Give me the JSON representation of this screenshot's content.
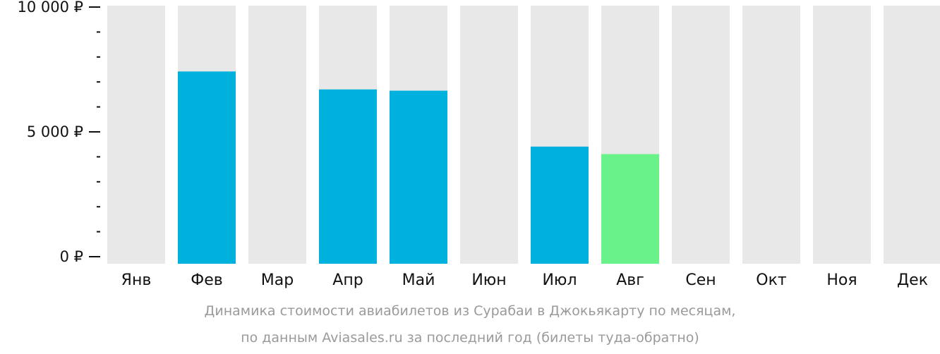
{
  "chart_data": {
    "type": "bar",
    "categories": [
      "Янв",
      "Фев",
      "Мар",
      "Апр",
      "Май",
      "Июн",
      "Июл",
      "Авг",
      "Сен",
      "Окт",
      "Ноя",
      "Дек"
    ],
    "values": [
      null,
      7420,
      null,
      6700,
      6650,
      null,
      4410,
      4110,
      null,
      null,
      null,
      null
    ],
    "ylim": [
      0,
      10000
    ],
    "yticks": [
      {
        "value": 0,
        "label": "0 ₽"
      },
      {
        "value": 5000,
        "label": "5 000 ₽"
      },
      {
        "value": 10000,
        "label": "10 000 ₽"
      }
    ],
    "minor_tick_step": 1000,
    "grid": false,
    "highlight_index": 7,
    "colors": {
      "bar": "#00b0dd",
      "highlight": "#6af28a",
      "background_column": "#e8e8e8",
      "axis": "#111111",
      "caption": "#9a9a9a"
    }
  },
  "caption": {
    "line1": "Динамика стоимости авиабилетов из Сурабаи в Джокьякарту по месяцам,",
    "line2": "по данным Aviasales.ru за последний год (билеты туда-обратно)"
  }
}
